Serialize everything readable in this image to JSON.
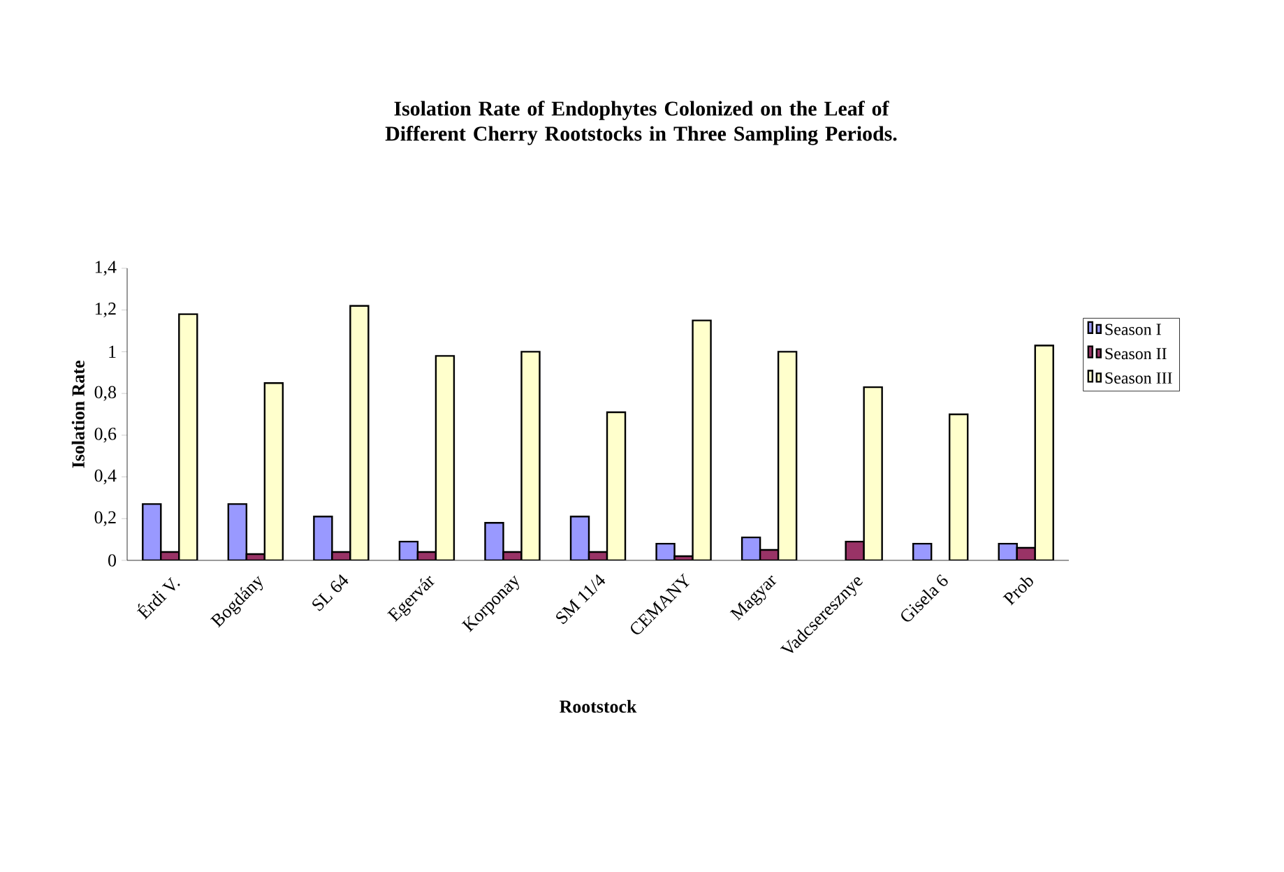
{
  "chart_data": {
    "type": "bar",
    "title": "Isolation Rate of Endophytes Colonized on the Leaf of Different Cherry Rootstocks in Three Sampling Periods.",
    "xlabel": "Rootstock",
    "ylabel": "Isolation Rate",
    "categories": [
      "Érdi V.",
      "Bogdány",
      "SL 64",
      "Egervár",
      "Korponay",
      "SM 11/4",
      "CEMANY",
      "Magyar",
      "Vadcseresznye",
      "Gisela 6",
      "Prob"
    ],
    "series": [
      {
        "name": "Season I",
        "color": "#9999ff",
        "values": [
          0.27,
          0.27,
          0.21,
          0.09,
          0.18,
          0.21,
          0.08,
          0.11,
          null,
          0.08,
          0.08
        ]
      },
      {
        "name": "Season II",
        "color": "#993366",
        "values": [
          0.04,
          0.03,
          0.04,
          0.04,
          0.04,
          0.04,
          0.02,
          0.05,
          0.09,
          null,
          0.06
        ]
      },
      {
        "name": "Season III",
        "color": "#ffffcc",
        "values": [
          1.18,
          0.85,
          1.22,
          0.98,
          1.0,
          0.71,
          1.15,
          1.0,
          0.83,
          0.7,
          1.03
        ]
      }
    ],
    "ylim": [
      0,
      1.4
    ],
    "yticks": [
      0,
      {
        "value": 0.2,
        "label": "0,2"
      },
      {
        "value": 0.4,
        "label": "0,4"
      },
      {
        "value": 0.6,
        "label": "0,6"
      },
      {
        "value": 0.8,
        "label": "0,8"
      },
      1,
      {
        "value": 1.2,
        "label": "1,2"
      },
      {
        "value": 1.4,
        "label": "1,4"
      }
    ],
    "grid": false,
    "legend": "right"
  }
}
